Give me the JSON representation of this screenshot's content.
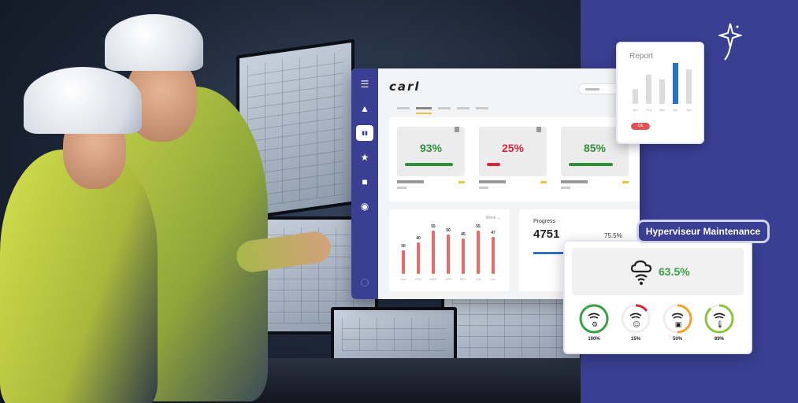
{
  "dashboard": {
    "logo": "carl",
    "sidebar": [
      {
        "icon": "triangle-icon",
        "glyph": "▲",
        "active": false
      },
      {
        "icon": "bar-chart-icon",
        "glyph": "▮▮",
        "active": true
      },
      {
        "icon": "star-icon",
        "glyph": "★",
        "active": false
      },
      {
        "icon": "square-icon",
        "glyph": "■",
        "active": false
      },
      {
        "icon": "circle-icon",
        "glyph": "◉",
        "active": false
      }
    ],
    "kpis": [
      {
        "value": "93%",
        "color": "#2f8f3b",
        "fill": 0.93
      },
      {
        "value": "25%",
        "color": "#d9243b",
        "fill": 0.25
      },
      {
        "value": "85%",
        "color": "#2f8f3b",
        "fill": 0.85
      }
    ],
    "chart": {
      "select_label": "Week ⌄"
    },
    "progress": {
      "title": "Progress",
      "value": "4751",
      "percent": "75.5%"
    }
  },
  "chart_data": [
    {
      "type": "bar",
      "categories": [
        "JAN",
        "FEB",
        "MAR",
        "APR",
        "MAY",
        "JUN",
        "JUL"
      ],
      "values": [
        30,
        40,
        55,
        50,
        45,
        55,
        47
      ],
      "ylim": [
        0,
        60
      ],
      "color": "#e86a6a"
    },
    {
      "type": "bar",
      "title": "Report",
      "categories": [
        "Jan",
        "Feb",
        "Mar",
        "Apr",
        "Apr"
      ],
      "values": [
        18,
        36,
        30,
        50,
        42
      ],
      "ylim": [
        0,
        50
      ],
      "highlight_index": 3,
      "color": "#dcdcdc",
      "highlight_color": "#2f6fbf"
    }
  ],
  "report": {
    "title": "Report",
    "button": "Ok"
  },
  "hyperviseur": {
    "label": "Hyperviseur Maintenance",
    "value": "63.5%",
    "gauges": [
      {
        "icon": "robot-arm-icon",
        "percent": "100%",
        "fill": 1.0,
        "color": "#3aa046"
      },
      {
        "icon": "robot-icon",
        "percent": "15%",
        "fill": 0.15,
        "color": "#d9243b"
      },
      {
        "icon": "package-icon",
        "percent": "50%",
        "fill": 0.5,
        "color": "#f2a22a"
      },
      {
        "icon": "thermometer-icon",
        "percent": "89%",
        "fill": 0.89,
        "color": "#8fc43c"
      }
    ]
  }
}
